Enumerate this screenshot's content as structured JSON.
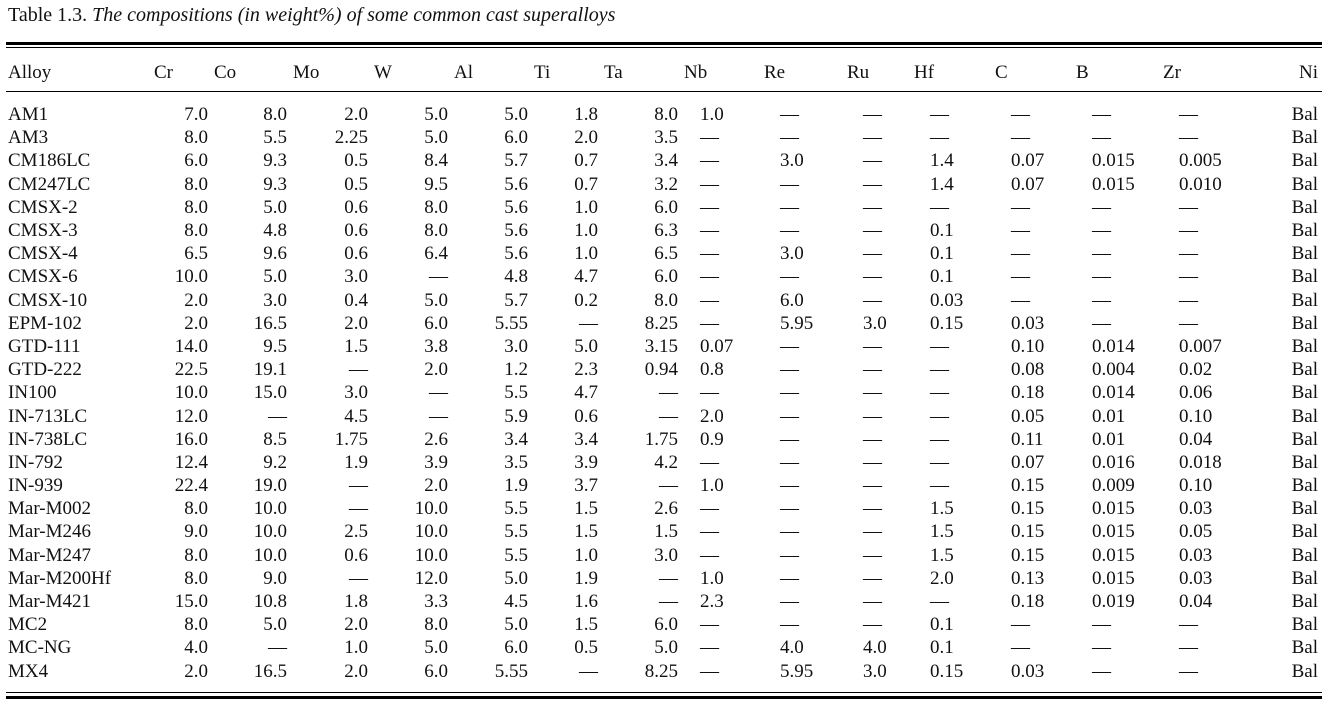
{
  "caption": {
    "label": "Table 1.3.",
    "title": "The compositions (in weight%) of some common cast superalloys"
  },
  "table": {
    "columns": [
      "Alloy",
      "Cr",
      "Co",
      "Mo",
      "W",
      "Al",
      "Ti",
      "Ta",
      "Nb",
      "Re",
      "Ru",
      "Hf",
      "C",
      "B",
      "Zr",
      "Ni"
    ],
    "rows": [
      [
        "AM1",
        "7.0",
        "8.0",
        "2.0",
        "5.0",
        "5.0",
        "1.8",
        "8.0",
        "1.0",
        "—",
        "—",
        "—",
        "—",
        "—",
        "—",
        "Bal"
      ],
      [
        "AM3",
        "8.0",
        "5.5",
        "2.25",
        "5.0",
        "6.0",
        "2.0",
        "3.5",
        "—",
        "—",
        "—",
        "—",
        "—",
        "—",
        "—",
        "Bal"
      ],
      [
        "CM186LC",
        "6.0",
        "9.3",
        "0.5",
        "8.4",
        "5.7",
        "0.7",
        "3.4",
        "—",
        "3.0",
        "—",
        "1.4",
        "0.07",
        "0.015",
        "0.005",
        "Bal"
      ],
      [
        "CM247LC",
        "8.0",
        "9.3",
        "0.5",
        "9.5",
        "5.6",
        "0.7",
        "3.2",
        "—",
        "—",
        "—",
        "1.4",
        "0.07",
        "0.015",
        "0.010",
        "Bal"
      ],
      [
        "CMSX-2",
        "8.0",
        "5.0",
        "0.6",
        "8.0",
        "5.6",
        "1.0",
        "6.0",
        "—",
        "—",
        "—",
        "—",
        "—",
        "—",
        "—",
        "Bal"
      ],
      [
        "CMSX-3",
        "8.0",
        "4.8",
        "0.6",
        "8.0",
        "5.6",
        "1.0",
        "6.3",
        "—",
        "—",
        "—",
        "0.1",
        "—",
        "—",
        "—",
        "Bal"
      ],
      [
        "CMSX-4",
        "6.5",
        "9.6",
        "0.6",
        "6.4",
        "5.6",
        "1.0",
        "6.5",
        "—",
        "3.0",
        "—",
        "0.1",
        "—",
        "—",
        "—",
        "Bal"
      ],
      [
        "CMSX-6",
        "10.0",
        "5.0",
        "3.0",
        "—",
        "4.8",
        "4.7",
        "6.0",
        "—",
        "—",
        "—",
        "0.1",
        "—",
        "—",
        "—",
        "Bal"
      ],
      [
        "CMSX-10",
        "2.0",
        "3.0",
        "0.4",
        "5.0",
        "5.7",
        "0.2",
        "8.0",
        "—",
        "6.0",
        "—",
        "0.03",
        "—",
        "—",
        "—",
        "Bal"
      ],
      [
        "EPM-102",
        "2.0",
        "16.5",
        "2.0",
        "6.0",
        "5.55",
        "—",
        "8.25",
        "—",
        "5.95",
        "3.0",
        "0.15",
        "0.03",
        "—",
        "—",
        "Bal"
      ],
      [
        "GTD-111",
        "14.0",
        "9.5",
        "1.5",
        "3.8",
        "3.0",
        "5.0",
        "3.15",
        "0.07",
        "—",
        "—",
        "—",
        "0.10",
        "0.014",
        "0.007",
        "Bal"
      ],
      [
        "GTD-222",
        "22.5",
        "19.1",
        "—",
        "2.0",
        "1.2",
        "2.3",
        "0.94",
        "0.8",
        "—",
        "—",
        "—",
        "0.08",
        "0.004",
        "0.02",
        "Bal"
      ],
      [
        "IN100",
        "10.0",
        "15.0",
        "3.0",
        "—",
        "5.5",
        "4.7",
        "—",
        "—",
        "—",
        "—",
        "—",
        "0.18",
        "0.014",
        "0.06",
        "Bal"
      ],
      [
        "IN-713LC",
        "12.0",
        "—",
        "4.5",
        "—",
        "5.9",
        "0.6",
        "—",
        "2.0",
        "—",
        "—",
        "—",
        "0.05",
        "0.01",
        "0.10",
        "Bal"
      ],
      [
        "IN-738LC",
        "16.0",
        "8.5",
        "1.75",
        "2.6",
        "3.4",
        "3.4",
        "1.75",
        "0.9",
        "—",
        "—",
        "—",
        "0.11",
        "0.01",
        "0.04",
        "Bal"
      ],
      [
        "IN-792",
        "12.4",
        "9.2",
        "1.9",
        "3.9",
        "3.5",
        "3.9",
        "4.2",
        "—",
        "—",
        "—",
        "—",
        "0.07",
        "0.016",
        "0.018",
        "Bal"
      ],
      [
        "IN-939",
        "22.4",
        "19.0",
        "—",
        "2.0",
        "1.9",
        "3.7",
        "—",
        "1.0",
        "—",
        "—",
        "—",
        "0.15",
        "0.009",
        "0.10",
        "Bal"
      ],
      [
        "Mar-M002",
        "8.0",
        "10.0",
        "—",
        "10.0",
        "5.5",
        "1.5",
        "2.6",
        "—",
        "—",
        "—",
        "1.5",
        "0.15",
        "0.015",
        "0.03",
        "Bal"
      ],
      [
        "Mar-M246",
        "9.0",
        "10.0",
        "2.5",
        "10.0",
        "5.5",
        "1.5",
        "1.5",
        "—",
        "—",
        "—",
        "1.5",
        "0.15",
        "0.015",
        "0.05",
        "Bal"
      ],
      [
        "Mar-M247",
        "8.0",
        "10.0",
        "0.6",
        "10.0",
        "5.5",
        "1.0",
        "3.0",
        "—",
        "—",
        "—",
        "1.5",
        "0.15",
        "0.015",
        "0.03",
        "Bal"
      ],
      [
        "Mar-M200Hf",
        "8.0",
        "9.0",
        "—",
        "12.0",
        "5.0",
        "1.9",
        "—",
        "1.0",
        "—",
        "—",
        "2.0",
        "0.13",
        "0.015",
        "0.03",
        "Bal"
      ],
      [
        "Mar-M421",
        "15.0",
        "10.8",
        "1.8",
        "3.3",
        "4.5",
        "1.6",
        "—",
        "2.3",
        "—",
        "—",
        "—",
        "0.18",
        "0.019",
        "0.04",
        "Bal"
      ],
      [
        "MC2",
        "8.0",
        "5.0",
        "2.0",
        "8.0",
        "5.0",
        "1.5",
        "6.0",
        "—",
        "—",
        "—",
        "0.1",
        "—",
        "—",
        "—",
        "Bal"
      ],
      [
        "MC-NG",
        "4.0",
        "—",
        "1.0",
        "5.0",
        "6.0",
        "0.5",
        "5.0",
        "—",
        "4.0",
        "4.0",
        "0.1",
        "—",
        "—",
        "—",
        "Bal"
      ],
      [
        "MX4",
        "2.0",
        "16.5",
        "2.0",
        "6.0",
        "5.55",
        "—",
        "8.25",
        "—",
        "5.95",
        "3.0",
        "0.15",
        "0.03",
        "—",
        "—",
        "Bal"
      ]
    ]
  }
}
